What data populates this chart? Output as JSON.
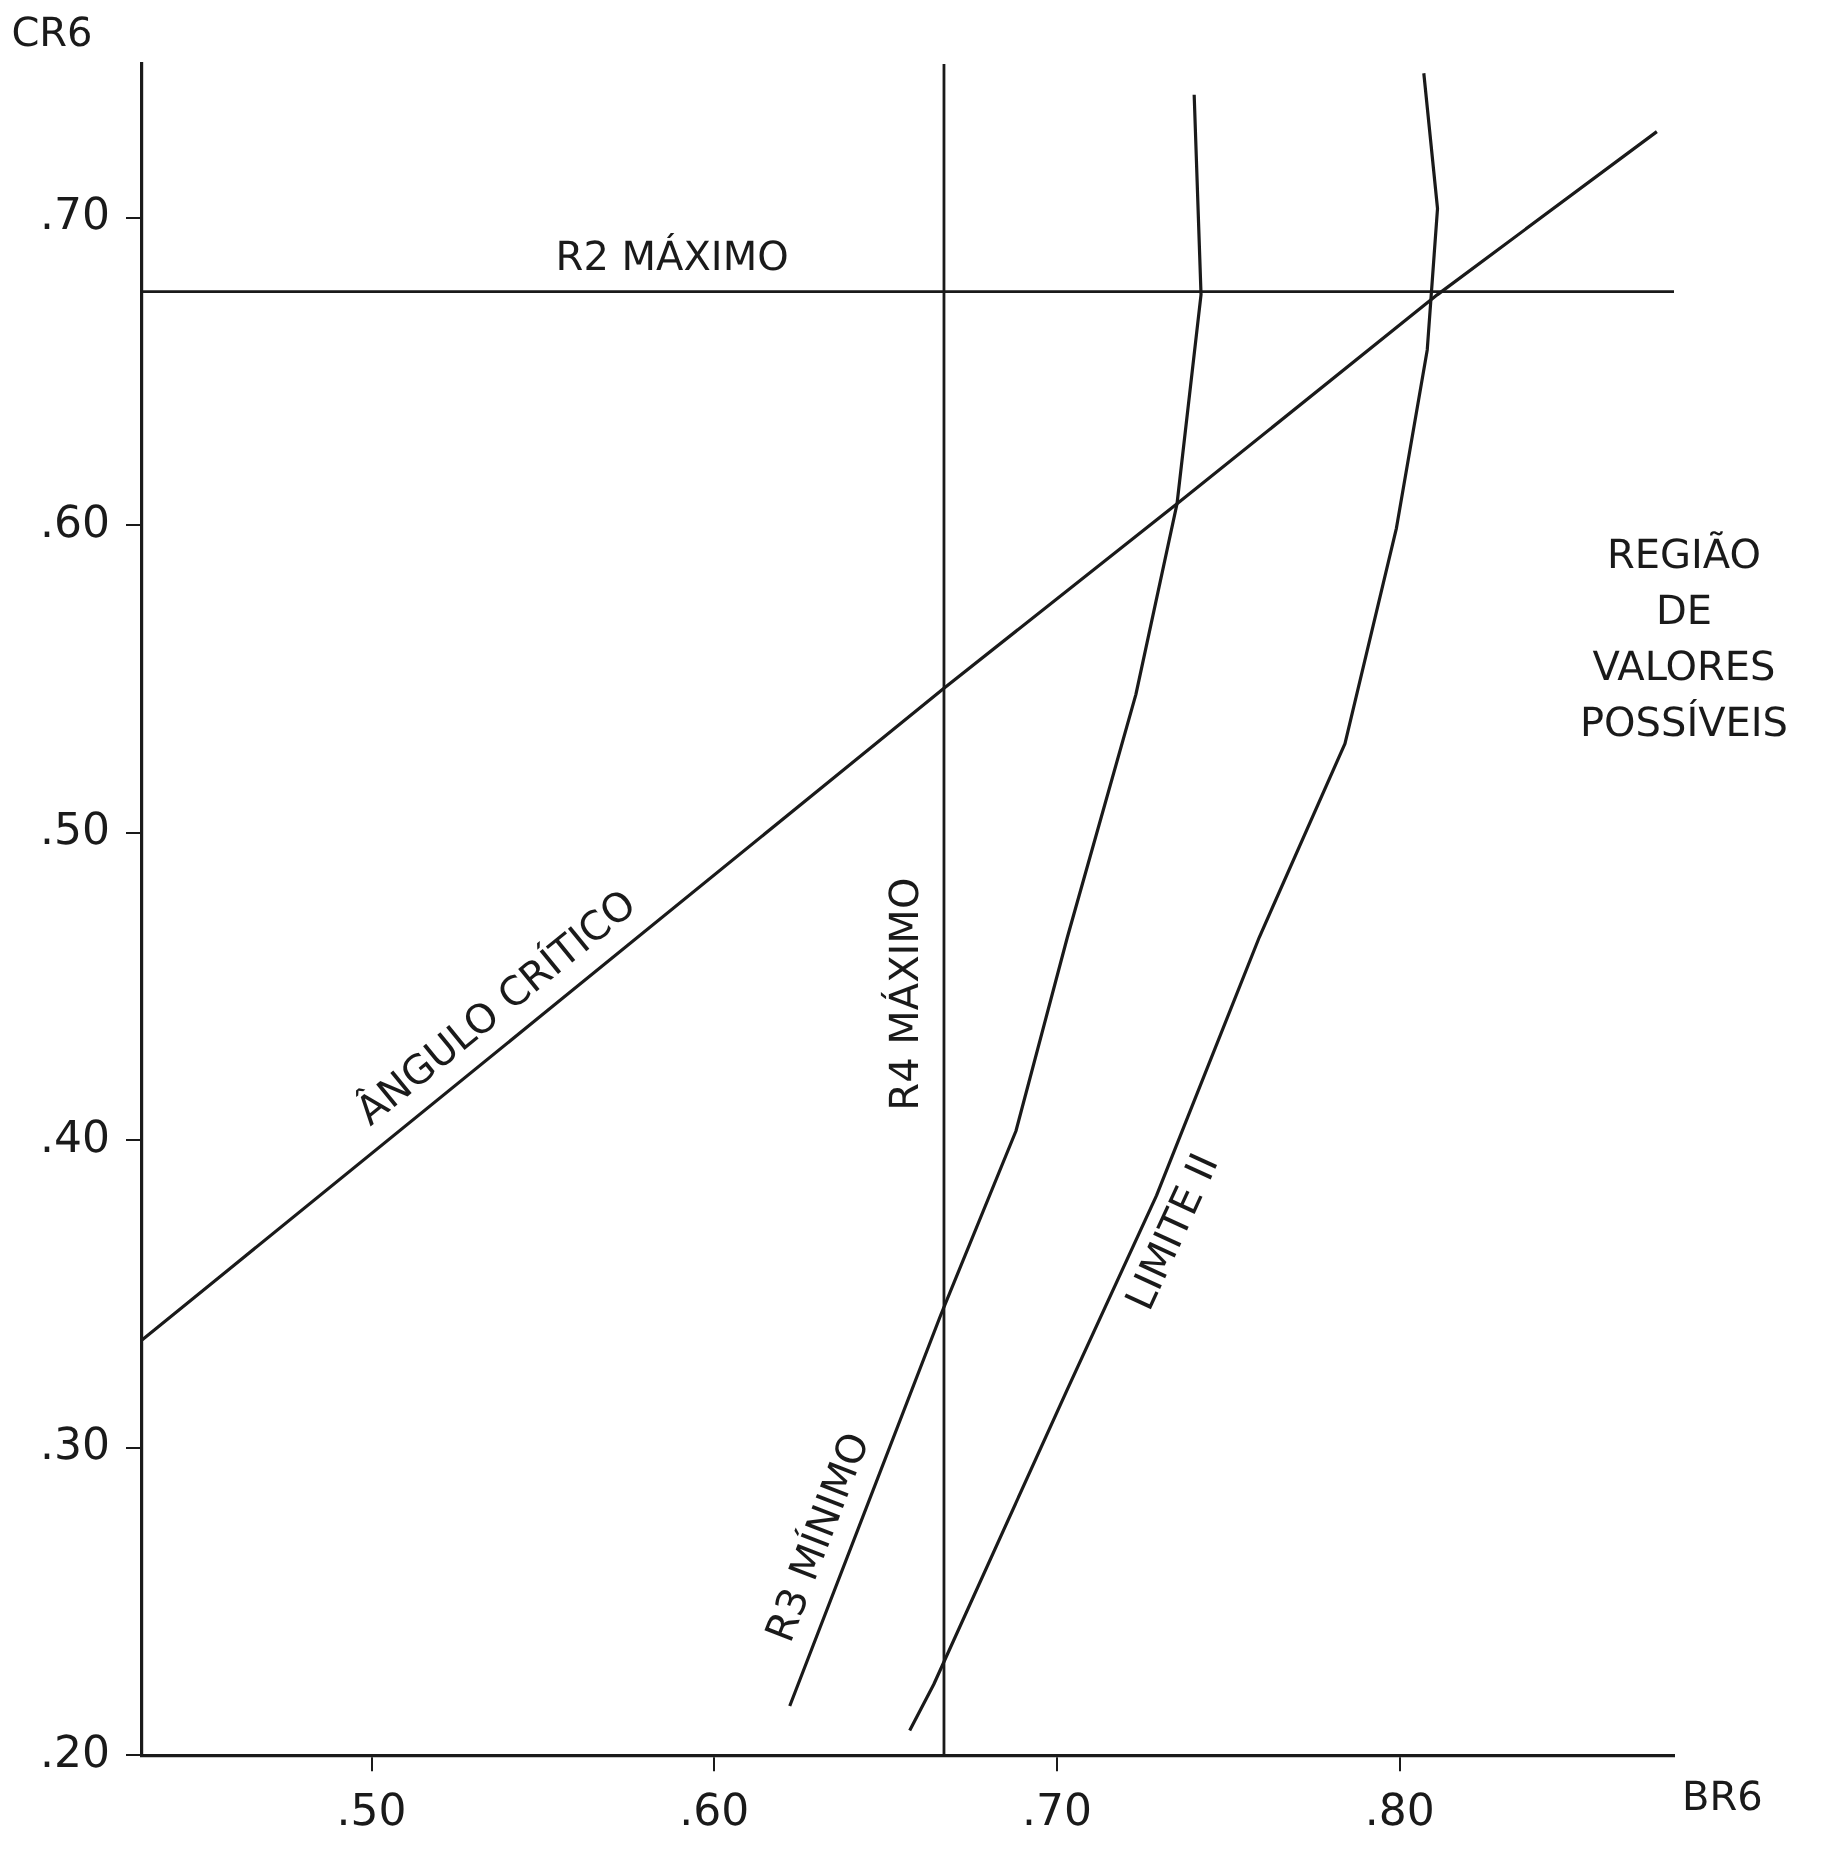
{
  "chart_data": {
    "type": "line",
    "xlabel": "BR6",
    "ylabel": "CR6",
    "xlim": [
      0.433,
      0.88
    ],
    "ylim": [
      0.2,
      0.75
    ],
    "xticks": [
      {
        "value": 0.5,
        "label": ".50"
      },
      {
        "value": 0.6,
        "label": ".60"
      },
      {
        "value": 0.7,
        "label": ".70"
      },
      {
        "value": 0.8,
        "label": ".80"
      }
    ],
    "yticks": [
      {
        "value": 0.2,
        "label": ".20"
      },
      {
        "value": 0.3,
        "label": ".30"
      },
      {
        "value": 0.4,
        "label": ".40"
      },
      {
        "value": 0.5,
        "label": ".50"
      },
      {
        "value": 0.6,
        "label": ".60"
      },
      {
        "value": 0.7,
        "label": ".70"
      }
    ],
    "grid": false,
    "legend": false,
    "marker": "none",
    "line_style": "solid",
    "series": [
      {
        "name": "ÂNGULO CRÍTICO",
        "color": "#1a1a1a",
        "x": [
          0.433,
          0.667,
          0.735,
          0.811,
          0.875
        ],
        "values": [
          0.335,
          0.547,
          0.607,
          0.675,
          0.728
        ]
      },
      {
        "name": "R3 MÍNIMO",
        "color": "#1a1a1a",
        "x": [
          0.622,
          0.666,
          0.688,
          0.703,
          0.723,
          0.735,
          0.742,
          0.74
        ],
        "values": [
          0.216,
          0.343,
          0.403,
          0.466,
          0.545,
          0.607,
          0.675,
          0.74
        ]
      },
      {
        "name": "LIMITE II",
        "color": "#1a1a1a",
        "x": [
          0.657,
          0.664,
          0.703,
          0.729,
          0.759,
          0.784,
          0.799,
          0.808,
          0.811,
          0.807
        ],
        "values": [
          0.208,
          0.223,
          0.319,
          0.382,
          0.466,
          0.529,
          0.599,
          0.657,
          0.703,
          0.747
        ]
      }
    ],
    "ref_lines": [
      {
        "axis": "y",
        "value": 0.676,
        "label": "R2 MÁXIMO",
        "color": "#1a1a1a"
      },
      {
        "axis": "x",
        "value": 0.667,
        "label": "R4 MÁXIMO",
        "color": "#1a1a1a"
      }
    ],
    "annotations": [
      "REGIÃO DE VALORES POSSÍVEIS"
    ]
  }
}
